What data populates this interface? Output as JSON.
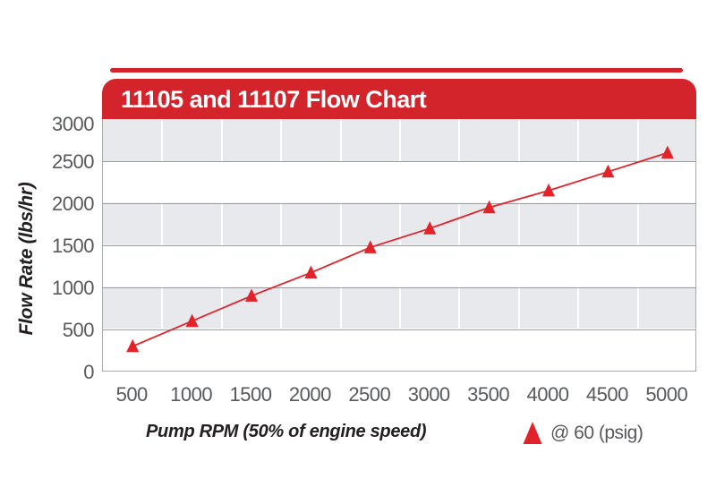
{
  "banner": {
    "title": "11105 and 11107 Flow Chart"
  },
  "chart_data": {
    "type": "line",
    "title": "11105 and 11107 Flow Chart",
    "xlabel": "Pump RPM (50% of engine speed)",
    "ylabel": "Flow Rate (lbs/hr)",
    "x": [
      500,
      1000,
      1500,
      2000,
      2500,
      3000,
      3500,
      4000,
      4500,
      5000
    ],
    "series": [
      {
        "name": "@ 60 (psig)",
        "marker": "triangle",
        "color": "#e2232a",
        "values": [
          300,
          600,
          900,
          1175,
          1475,
          1700,
          1950,
          2150,
          2375,
          2600
        ]
      }
    ],
    "ylim": [
      0,
      3000
    ],
    "yticks": [
      0,
      500,
      1000,
      1500,
      2000,
      2500,
      3000
    ],
    "grid": "horizontal gridlines with alternating gray/white bands, white vertical column lines",
    "band_colors": [
      "#e8e9ec",
      "#ffffff"
    ],
    "legend_position": "bottom-right"
  },
  "legend": {
    "label": "@ 60 (psig)"
  },
  "colors": {
    "brand_red": "#d3232b",
    "series_red": "#e2232a",
    "band_gray": "#e8e9ec",
    "gridline": "#9b9da1",
    "plot_border": "#a9abae",
    "tick_text": "#58595b",
    "axis_title_text": "#231f20"
  }
}
